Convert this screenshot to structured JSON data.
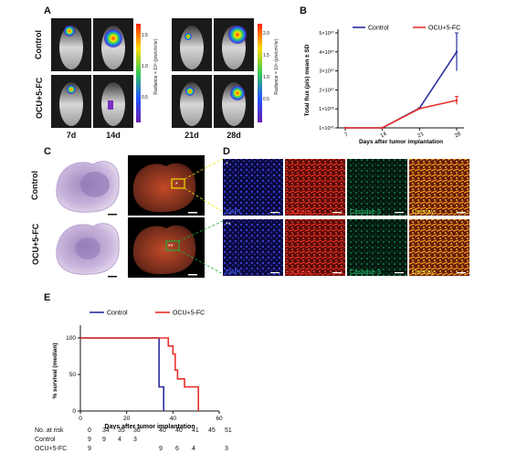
{
  "panels": {
    "A": {
      "label": "A",
      "rows": [
        "Control",
        "OCU+5-FC"
      ],
      "days": [
        "7d",
        "14d",
        "21d",
        "28d"
      ],
      "colorbar_left": {
        "ticks": [
          "1.5",
          "1.0",
          "0.5"
        ],
        "label": "Radiance × 10⁵ (p/s/cm²/sr)"
      },
      "colorbar_right": {
        "ticks": [
          "2.0",
          "1.5",
          "1.0",
          "0.5"
        ],
        "label": "Radiance × 10⁶ (p/s/cm²/sr)"
      }
    },
    "B": {
      "label": "B"
    },
    "C": {
      "label": "C",
      "rows": [
        "Control",
        "OCU+5-FC"
      ],
      "markers": [
        "*",
        "**"
      ]
    },
    "D": {
      "label": "D",
      "channels": [
        "DAPI",
        "mCherry",
        "Caspase-3",
        "Overlay"
      ],
      "markers": [
        "*",
        "**"
      ]
    },
    "E": {
      "label": "E"
    }
  },
  "colors": {
    "control": "#2b2f9e",
    "treated": "#e8302a"
  },
  "chart_data": [
    {
      "type": "line",
      "panel": "B",
      "x": [
        7,
        14,
        21,
        28
      ],
      "xticks": [
        "7",
        "14",
        "21",
        "28"
      ],
      "series": [
        {
          "name": "Control",
          "values": [
            100000,
            100000,
            1800000,
            40000000
          ],
          "err": [
            0,
            0,
            300000,
            10000000
          ]
        },
        {
          "name": "OCU+5-FC",
          "values": [
            100000,
            100000,
            1300000,
            9500000
          ],
          "err": [
            0,
            0,
            150000,
            4000000
          ]
        }
      ],
      "yticks": [
        "1×10⁰⁵",
        "1×10⁰⁶",
        "2×10⁰⁷",
        "3×10⁰⁷",
        "4×10⁰⁷",
        "5×10⁰⁷"
      ],
      "xlabel": "Days after tumor implantation",
      "ylabel": "Total flux (p/s) mean ± SD",
      "legend": "top"
    },
    {
      "type": "line",
      "panel": "E",
      "xlim": [
        0,
        60
      ],
      "ylim": [
        0,
        100
      ],
      "xticks": [
        "0",
        "20",
        "40",
        "60"
      ],
      "yticks": [
        "0",
        "50",
        "100"
      ],
      "series": [
        {
          "name": "Control",
          "steps": [
            [
              0,
              100
            ],
            [
              34,
              100
            ],
            [
              34,
              33
            ],
            [
              36,
              33
            ],
            [
              36,
              0
            ]
          ]
        },
        {
          "name": "OCU+5-FC",
          "steps": [
            [
              0,
              100
            ],
            [
              38,
              100
            ],
            [
              38,
              89
            ],
            [
              40,
              89
            ],
            [
              40,
              78
            ],
            [
              41,
              78
            ],
            [
              41,
              56
            ],
            [
              42,
              56
            ],
            [
              42,
              44
            ],
            [
              45,
              44
            ],
            [
              45,
              33
            ],
            [
              51,
              33
            ],
            [
              51,
              0
            ]
          ]
        }
      ],
      "xlabel": "Days after tumor implantation",
      "ylabel": "% survival (median)",
      "legend": "top"
    }
  ],
  "risk_table": {
    "title": "No. at risk",
    "times": [
      "0",
      "34",
      "35",
      "36",
      "40",
      "40",
      "41",
      "45",
      "51"
    ],
    "rows": [
      {
        "label": "Control",
        "values": [
          "9",
          "9",
          "4",
          "3",
          "",
          "",
          "",
          "",
          ""
        ]
      },
      {
        "label": "OCU+5-FC",
        "values": [
          "9",
          "",
          "",
          "",
          "9",
          "6",
          "4",
          "",
          "3"
        ]
      }
    ]
  }
}
